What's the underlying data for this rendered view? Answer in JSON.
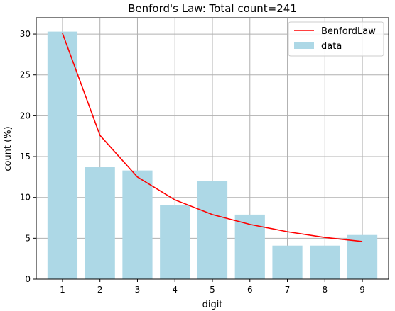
{
  "chart_data": {
    "type": "bar",
    "title": "Benford's Law: Total count=241",
    "xlabel": "digit",
    "ylabel": "count (%)",
    "categories": [
      "1",
      "2",
      "3",
      "4",
      "5",
      "6",
      "7",
      "8",
      "9"
    ],
    "x": [
      1,
      2,
      3,
      4,
      5,
      6,
      7,
      8,
      9
    ],
    "xlim": [
      0.3,
      9.7
    ],
    "ylim": [
      0,
      32
    ],
    "yticks": [
      0,
      5,
      10,
      15,
      20,
      25,
      30
    ],
    "grid": true,
    "legend_position": "top-right",
    "series": [
      {
        "name": "data",
        "kind": "bar",
        "color": "#add8e6",
        "values": [
          30.3,
          13.7,
          13.3,
          9.1,
          12.0,
          7.9,
          4.1,
          4.1,
          5.4
        ]
      },
      {
        "name": "BenfordLaw",
        "kind": "line",
        "color": "#ff0000",
        "values": [
          30.1,
          17.6,
          12.5,
          9.7,
          7.9,
          6.7,
          5.8,
          5.1,
          4.6
        ]
      }
    ]
  }
}
